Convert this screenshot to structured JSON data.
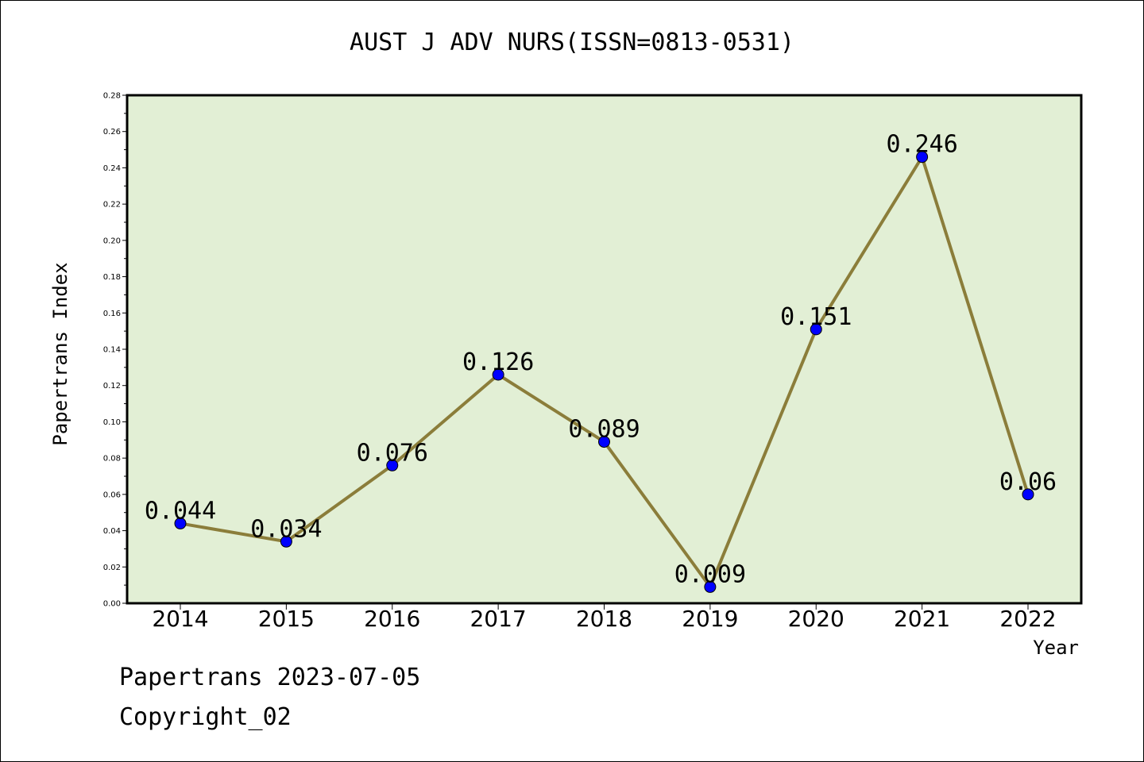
{
  "chart_data": {
    "type": "line",
    "title": "AUST J ADV NURS(ISSN=0813-0531)",
    "xlabel": "Year",
    "ylabel": "Papertrans Index",
    "categories": [
      "2014",
      "2015",
      "2016",
      "2017",
      "2018",
      "2019",
      "2020",
      "2021",
      "2022"
    ],
    "values": [
      0.044,
      0.034,
      0.076,
      0.126,
      0.089,
      0.009,
      0.151,
      0.246,
      0.06
    ],
    "value_labels": [
      "0.044",
      "0.034",
      "0.076",
      "0.126",
      "0.089",
      "0.009",
      "0.151",
      "0.246",
      "0.06"
    ],
    "ylim": [
      0,
      0.28
    ],
    "yticks": [
      0.0,
      0.02,
      0.04,
      0.06,
      0.08,
      0.1,
      0.12,
      0.14,
      0.16,
      0.18,
      0.2,
      0.22,
      0.24,
      0.26,
      0.28
    ],
    "ytick_labels": [
      "0.00",
      "0.02",
      "0.04",
      "0.06",
      "0.08",
      "0.10",
      "0.12",
      "0.14",
      "0.16",
      "0.18",
      "0.20",
      "0.22",
      "0.24",
      "0.26",
      "0.28"
    ],
    "grid": false,
    "legend": "none",
    "colors": {
      "plot_background": "#e2efd5",
      "line": "#8b7d3a",
      "marker": "#0000ff"
    }
  },
  "footer": {
    "line1": "Papertrans 2023-07-05",
    "line2": "Copyright_02"
  }
}
